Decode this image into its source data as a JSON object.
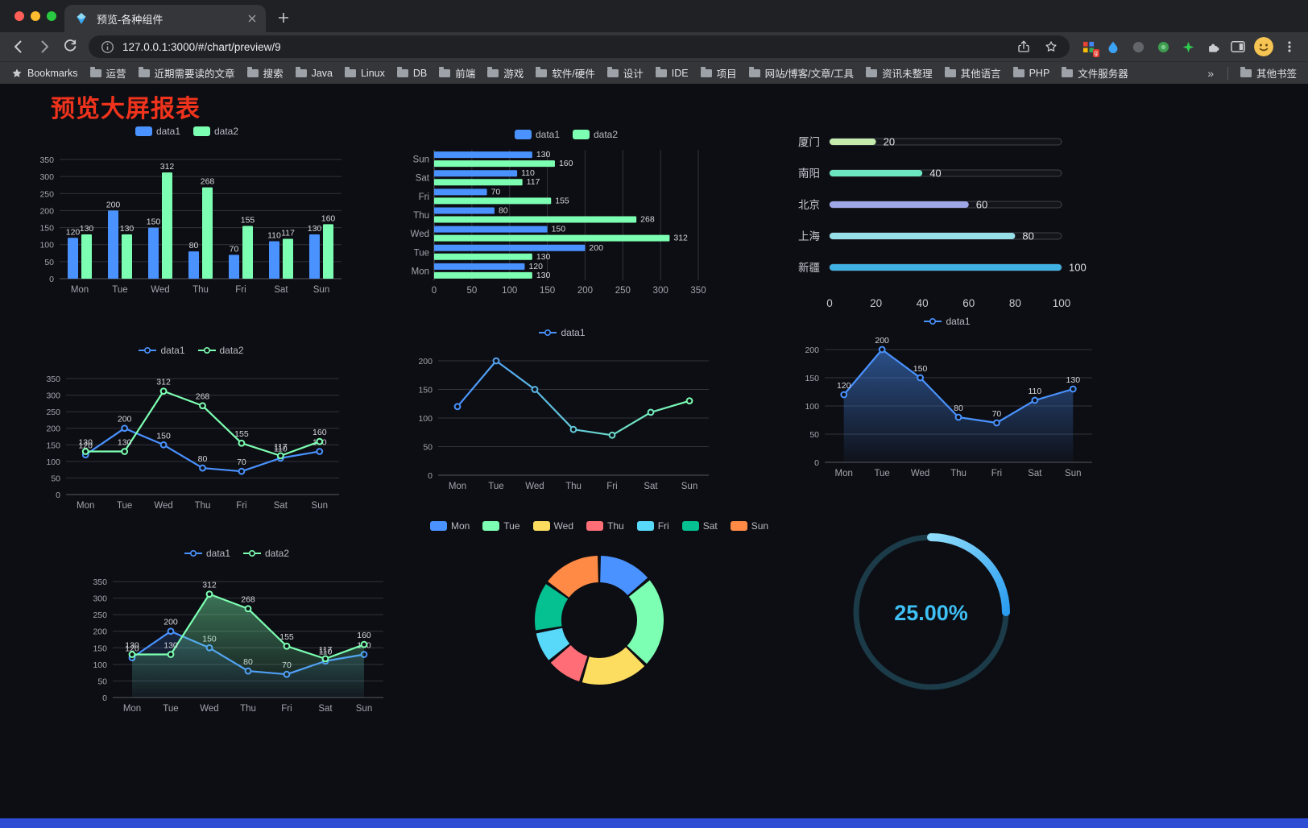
{
  "browser": {
    "tab": {
      "title": "预览-各种组件"
    },
    "url": "127.0.0.1:3000/#/chart/preview/9",
    "extension_badge": "g",
    "bookmarks_bar": {
      "bookmarks_label": "Bookmarks",
      "folders": [
        "运营",
        "近期需要读的文章",
        "搜索",
        "Java",
        "Linux",
        "DB",
        "前端",
        "游戏",
        "软件/硬件",
        "设计",
        "IDE",
        "项目",
        "网站/博客/文章/工具",
        "资讯未整理",
        "其他语言",
        "PHP",
        "文件服务器"
      ],
      "overflow_chevron": "»",
      "other_bookmarks_label": "其他书签"
    }
  },
  "page": {
    "title": "预览大屏报表",
    "title_color": "#f0331c",
    "background": "#0d0e13",
    "footer_bar_color": "#2d4dd2"
  },
  "chart_data": [
    {
      "id": "grouped-bar-chart",
      "type": "bar",
      "legend": true,
      "categories": [
        "Mon",
        "Tue",
        "Wed",
        "Thu",
        "Fri",
        "Sat",
        "Sun"
      ],
      "series": [
        {
          "name": "data1",
          "color": "#4992ff",
          "values": [
            120,
            200,
            150,
            80,
            70,
            110,
            130
          ]
        },
        {
          "name": "data2",
          "color": "#7cffb2",
          "values": [
            130,
            130,
            312,
            268,
            155,
            117,
            160
          ]
        }
      ],
      "ylim": [
        0,
        350
      ],
      "yticks": [
        0,
        50,
        100,
        150,
        200,
        250,
        300,
        350
      ],
      "data_labels": true
    },
    {
      "id": "horizontal-bar-chart",
      "type": "hbar",
      "legend": true,
      "categories": [
        "Mon",
        "Tue",
        "Wed",
        "Thu",
        "Fri",
        "Sat",
        "Sun"
      ],
      "series": [
        {
          "name": "data1",
          "color": "#4992ff",
          "values": [
            120,
            200,
            150,
            80,
            70,
            110,
            130
          ]
        },
        {
          "name": "data2",
          "color": "#7cffb2",
          "values": [
            130,
            130,
            312,
            268,
            155,
            117,
            160
          ]
        }
      ],
      "xlim": [
        0,
        350
      ],
      "xticks": [
        0,
        50,
        100,
        150,
        200,
        250,
        300,
        350
      ],
      "data_labels": true
    },
    {
      "id": "city-progress-chart",
      "type": "progress",
      "legend": false,
      "categories": [
        "厦门",
        "南阳",
        "北京",
        "上海",
        "新疆"
      ],
      "values": [
        20,
        40,
        60,
        80,
        100
      ],
      "colors": [
        "#c4ebad",
        "#6be6c1",
        "#a0a7e6",
        "#96dee8",
        "#3fb1e3"
      ],
      "xlim": [
        0,
        100
      ],
      "xticks": [
        0,
        20,
        40,
        60,
        80,
        100
      ]
    },
    {
      "id": "multi-line-chart",
      "type": "line",
      "legend": true,
      "area": false,
      "categories": [
        "Mon",
        "Tue",
        "Wed",
        "Thu",
        "Fri",
        "Sat",
        "Sun"
      ],
      "series": [
        {
          "name": "data1",
          "color": "#4992ff",
          "values": [
            120,
            200,
            150,
            80,
            70,
            110,
            130
          ]
        },
        {
          "name": "data2",
          "color": "#7cffb2",
          "values": [
            130,
            130,
            312,
            268,
            155,
            117,
            160
          ]
        }
      ],
      "ylim": [
        0,
        350
      ],
      "yticks": [
        0,
        50,
        100,
        150,
        200,
        250,
        300,
        350
      ],
      "data_labels": true
    },
    {
      "id": "gradient-line-chart",
      "type": "line",
      "legend": true,
      "area": false,
      "categories": [
        "Mon",
        "Tue",
        "Wed",
        "Thu",
        "Fri",
        "Sat",
        "Sun"
      ],
      "series": [
        {
          "name": "data1",
          "color": "#4992ff",
          "gradient": [
            "#4992ff",
            "#7cffb2"
          ],
          "values": [
            120,
            200,
            150,
            80,
            70,
            110,
            130
          ]
        }
      ],
      "ylim": [
        0,
        200
      ],
      "yticks": [
        0,
        50,
        100,
        150,
        200
      ],
      "data_labels": false
    },
    {
      "id": "area-line-chart",
      "type": "line",
      "legend": true,
      "area": true,
      "categories": [
        "Mon",
        "Tue",
        "Wed",
        "Thu",
        "Fri",
        "Sat",
        "Sun"
      ],
      "series": [
        {
          "name": "data1",
          "color": "#4992ff",
          "values": [
            120,
            200,
            150,
            80,
            70,
            110,
            130
          ],
          "area_opacity": 0.5
        }
      ],
      "ylim": [
        0,
        200
      ],
      "yticks": [
        0,
        50,
        100,
        150,
        200
      ],
      "data_labels": true
    },
    {
      "id": "double-area-chart",
      "type": "line",
      "legend": true,
      "area": true,
      "categories": [
        "Mon",
        "Tue",
        "Wed",
        "Thu",
        "Fri",
        "Sat",
        "Sun"
      ],
      "series": [
        {
          "name": "data1",
          "color": "#4992ff",
          "values": [
            120,
            200,
            150,
            80,
            70,
            110,
            130
          ],
          "area_opacity": 0.18
        },
        {
          "name": "data2",
          "color": "#7cffb2",
          "values": [
            130,
            130,
            312,
            268,
            155,
            117,
            160
          ],
          "area_opacity": 0.42
        }
      ],
      "ylim": [
        0,
        350
      ],
      "yticks": [
        0,
        50,
        100,
        150,
        200,
        250,
        300,
        350
      ],
      "data_labels": true
    },
    {
      "id": "donut-chart",
      "type": "pie",
      "legend": true,
      "categories": [
        "Mon",
        "Tue",
        "Wed",
        "Thu",
        "Fri",
        "Sat",
        "Sun"
      ],
      "values": [
        120,
        200,
        150,
        80,
        70,
        110,
        130
      ],
      "colors": [
        "#4992ff",
        "#7cffb2",
        "#fddd60",
        "#ff6e76",
        "#58d9f9",
        "#05c091",
        "#ff8a45"
      ]
    },
    {
      "id": "ring-progress-chart",
      "type": "gauge",
      "legend": false,
      "percent": 25,
      "label": "25.00%",
      "color_start": "#8fdcfb",
      "color_end": "#2b9df0",
      "track_color": "#1b3b49",
      "text_color": "#3fc0f5"
    }
  ]
}
